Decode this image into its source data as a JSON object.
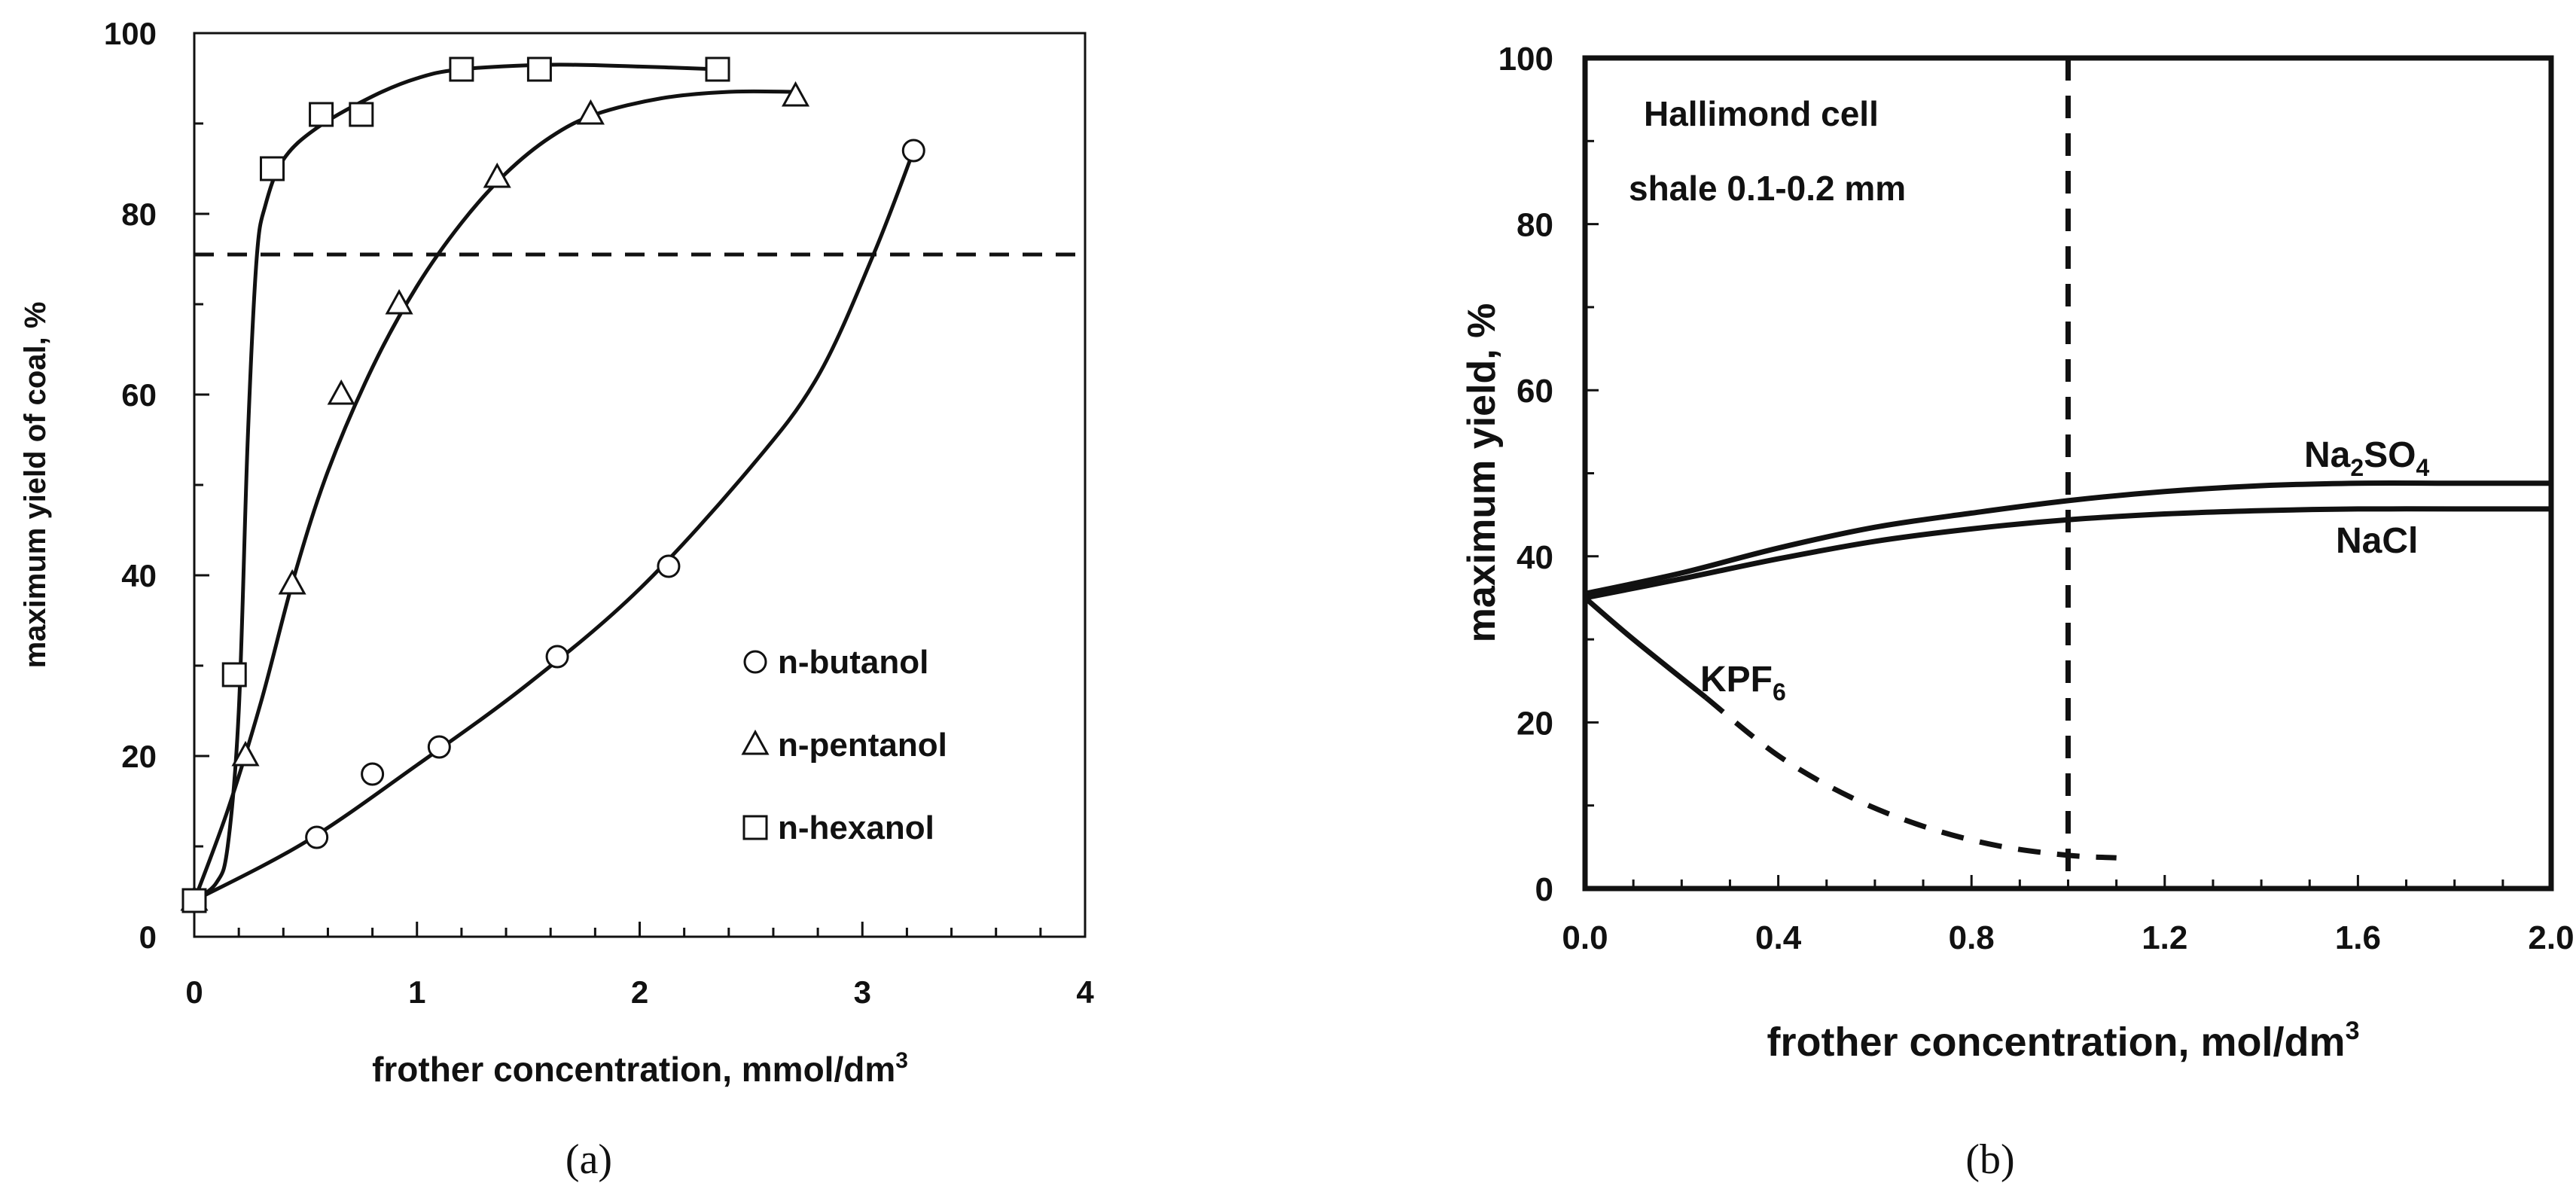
{
  "chart_data": [
    {
      "type": "scatter",
      "panel_label": "(a)",
      "xlabel": "frother concentration, mmol/dm",
      "xlabel_sup": "3",
      "ylabel": "maximum yield of coal, %",
      "xlim": [
        0,
        4
      ],
      "ylim": [
        0,
        100
      ],
      "xticks": [
        0,
        1,
        2,
        3,
        4
      ],
      "yticks": [
        0,
        20,
        40,
        60,
        80,
        100
      ],
      "reference_line_y": 75.5,
      "series": [
        {
          "name": "n-butanol",
          "marker": "circle",
          "points": [
            [
              0,
              4
            ],
            [
              0.55,
              11
            ],
            [
              0.8,
              18
            ],
            [
              1.1,
              21
            ],
            [
              1.63,
              31
            ],
            [
              2.13,
              41
            ],
            [
              3.23,
              87
            ]
          ],
          "curve": [
            [
              0,
              4
            ],
            [
              0.5,
              10.5
            ],
            [
              1.0,
              19
            ],
            [
              1.5,
              28
            ],
            [
              2.0,
              38.5
            ],
            [
              2.5,
              52
            ],
            [
              2.8,
              62
            ],
            [
              3.05,
              75.5
            ],
            [
              3.23,
              87
            ]
          ]
        },
        {
          "name": "n-pentanol",
          "marker": "triangle",
          "points": [
            [
              0,
              4
            ],
            [
              0.23,
              20
            ],
            [
              0.44,
              39
            ],
            [
              0.66,
              60
            ],
            [
              0.92,
              70
            ],
            [
              1.36,
              84
            ],
            [
              1.78,
              91
            ],
            [
              2.7,
              93
            ]
          ],
          "curve": [
            [
              0,
              4
            ],
            [
              0.15,
              14
            ],
            [
              0.3,
              26
            ],
            [
              0.45,
              40
            ],
            [
              0.6,
              51.5
            ],
            [
              0.8,
              63
            ],
            [
              1.0,
              72
            ],
            [
              1.2,
              79
            ],
            [
              1.4,
              84.5
            ],
            [
              1.6,
              88.5
            ],
            [
              1.8,
              91
            ],
            [
              2.1,
              92.8
            ],
            [
              2.4,
              93.5
            ],
            [
              2.7,
              93.5
            ]
          ]
        },
        {
          "name": "n-hexanol",
          "marker": "square",
          "points": [
            [
              0,
              4
            ],
            [
              0.18,
              29
            ],
            [
              0.35,
              85
            ],
            [
              0.57,
              91
            ],
            [
              0.75,
              91
            ],
            [
              1.2,
              96
            ],
            [
              1.55,
              96
            ],
            [
              2.35,
              96
            ]
          ],
          "curve": [
            [
              0,
              4
            ],
            [
              0.1,
              6
            ],
            [
              0.15,
              10
            ],
            [
              0.2,
              25
            ],
            [
              0.24,
              55
            ],
            [
              0.28,
              75
            ],
            [
              0.32,
              81
            ],
            [
              0.4,
              86
            ],
            [
              0.55,
              89.5
            ],
            [
              0.8,
              93
            ],
            [
              1.0,
              95
            ],
            [
              1.2,
              96
            ],
            [
              1.6,
              96.5
            ],
            [
              2.0,
              96.3
            ],
            [
              2.35,
              96
            ]
          ]
        }
      ]
    },
    {
      "type": "line",
      "panel_label": "(b)",
      "xlabel": "frother concentration, mol/dm",
      "xlabel_sup": "3",
      "ylabel": "maximum yield, %",
      "xlim": [
        0,
        2.0
      ],
      "ylim": [
        0,
        100
      ],
      "xticks": [
        "0.0",
        "0.4",
        "0.8",
        "1.2",
        "1.6",
        "2.0"
      ],
      "yticks": [
        0,
        20,
        40,
        60,
        80,
        100
      ],
      "reference_line_x": 1.0,
      "annotations": [
        "Hallimond cell",
        "shale 0.1-0.2 mm"
      ],
      "series": [
        {
          "name": "Na2SO4",
          "label_main": "Na",
          "label_sub1": "2",
          "label_mid": "SO",
          "label_sub2": "4",
          "style": "solid",
          "values": [
            [
              0,
              35.5
            ],
            [
              0.2,
              38
            ],
            [
              0.4,
              41
            ],
            [
              0.6,
              43.5
            ],
            [
              0.8,
              45.2
            ],
            [
              1.0,
              46.7
            ],
            [
              1.2,
              47.8
            ],
            [
              1.4,
              48.5
            ],
            [
              1.6,
              48.8
            ],
            [
              1.8,
              48.8
            ],
            [
              2.0,
              48.8
            ]
          ]
        },
        {
          "name": "NaCl",
          "label_main": "NaCl",
          "style": "solid",
          "values": [
            [
              0,
              35
            ],
            [
              0.2,
              37.3
            ],
            [
              0.4,
              39.7
            ],
            [
              0.6,
              41.8
            ],
            [
              0.8,
              43.3
            ],
            [
              1.0,
              44.4
            ],
            [
              1.2,
              45.1
            ],
            [
              1.4,
              45.5
            ],
            [
              1.6,
              45.7
            ],
            [
              1.8,
              45.7
            ],
            [
              2.0,
              45.7
            ]
          ]
        },
        {
          "name": "KPF6",
          "label_main": "KPF",
          "label_sub1": "6",
          "style": "dashed",
          "values": [
            [
              0,
              35
            ],
            [
              0.1,
              30
            ],
            [
              0.25,
              23
            ],
            [
              0.4,
              16
            ],
            [
              0.55,
              11
            ],
            [
              0.7,
              7.5
            ],
            [
              0.85,
              5.2
            ],
            [
              1.0,
              4
            ],
            [
              1.1,
              3.7
            ]
          ]
        }
      ]
    }
  ]
}
